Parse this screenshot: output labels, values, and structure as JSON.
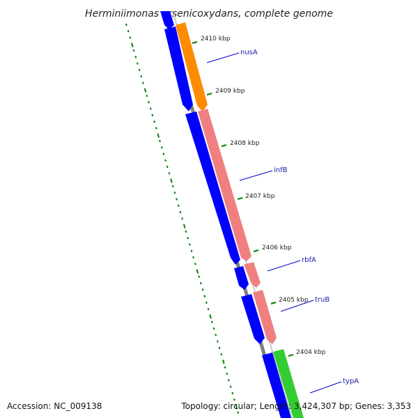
{
  "title": "Herminiimonas arsenicoxydans, complete genome",
  "footer": {
    "accession": "Accession: NC_009138",
    "summary": "Topology: circular; Length: 3,424,307 bp; Genes: 3,353"
  },
  "colors": {
    "backbone": "#808080",
    "reverse_cds": "#0000ff",
    "nusA": "#ff8c00",
    "infB": "#f08080",
    "rbfA": "#f08080",
    "truB": "#f08080",
    "typA": "#32cd32",
    "tick": "#008000",
    "label_line": "#0000cd"
  },
  "kbp_ticks": [
    "2410 kbp",
    "2409 kbp",
    "2408 kbp",
    "2407 kbp",
    "2406 kbp",
    "2405 kbp",
    "2404 kbp"
  ],
  "genes": [
    {
      "name": "nusA"
    },
    {
      "name": "infB"
    },
    {
      "name": "rbfA"
    },
    {
      "name": "truB"
    },
    {
      "name": "typA"
    }
  ]
}
